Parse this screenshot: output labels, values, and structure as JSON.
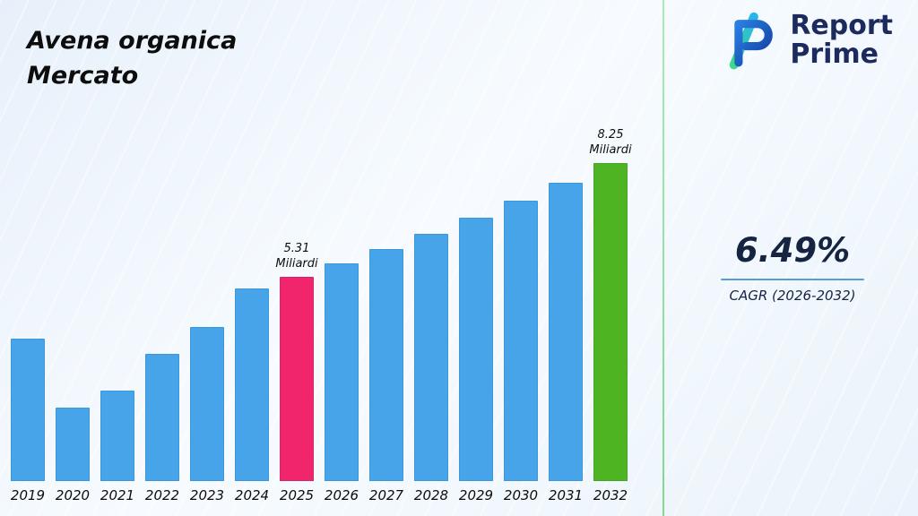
{
  "title": "Avena organica\nMercato",
  "logo": {
    "line1": "Report",
    "line2": "Prime"
  },
  "cagr": {
    "value": "6.49%",
    "label": "CAGR (2026-2032)"
  },
  "chart_data": {
    "type": "bar",
    "title": "Avena organica Mercato",
    "unit": "Miliardi",
    "categories": [
      "2019",
      "2020",
      "2021",
      "2022",
      "2023",
      "2024",
      "2025",
      "2026",
      "2027",
      "2028",
      "2029",
      "2030",
      "2031",
      "2032"
    ],
    "values": [
      3.7,
      1.9,
      2.35,
      3.3,
      4.0,
      5.0,
      5.31,
      5.66,
      6.03,
      6.42,
      6.83,
      7.28,
      7.75,
      8.25
    ],
    "ylim": [
      0,
      9.1
    ],
    "grid": false,
    "legend": "none",
    "bar_colors": {
      "default": "#47A4E8",
      "2025": "#F0256B",
      "2032": "#4FB422"
    },
    "annotations": [
      {
        "category": "2025",
        "lines": [
          "5.31",
          "Miliardi"
        ]
      },
      {
        "category": "2032",
        "lines": [
          "8.25",
          "Miliardi"
        ]
      }
    ]
  }
}
